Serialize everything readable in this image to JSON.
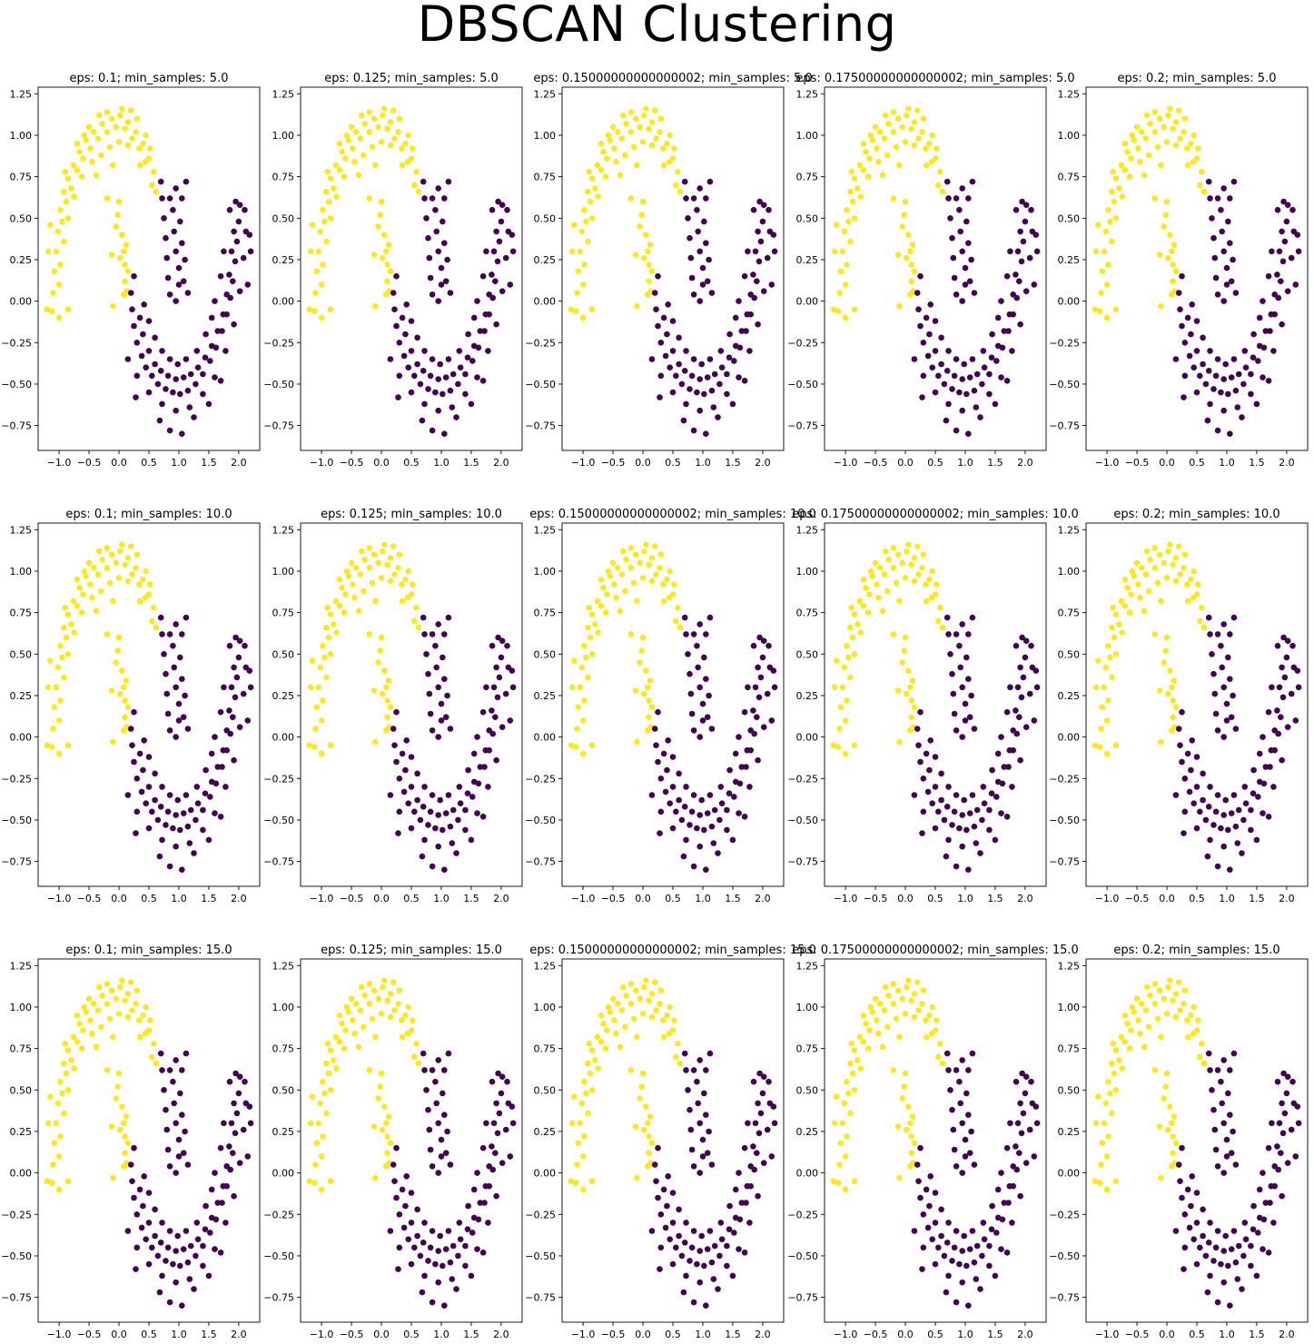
{
  "suptitle": "DBSCAN Clustering",
  "colors": {
    "cluster0": "#440154",
    "cluster1": "#fde725",
    "axis": "#000000"
  },
  "chart_data": {
    "type": "scatter",
    "grid": false,
    "rows": 3,
    "cols": 5,
    "xlim": [
      -1.35,
      2.35
    ],
    "ylim": [
      -0.9,
      1.29
    ],
    "xticks": [
      -1.0,
      -0.5,
      0.0,
      0.5,
      1.0,
      1.5,
      2.0
    ],
    "xtick_labels": [
      "−1.0",
      "−0.5",
      "0.0",
      "0.5",
      "1.0",
      "1.5",
      "2.0"
    ],
    "yticks": [
      1.25,
      1.0,
      0.75,
      0.5,
      0.25,
      0.0,
      -0.25,
      -0.5,
      -0.75
    ],
    "ytick_labels": [
      "1.25",
      "1.00",
      "0.75",
      "0.50",
      "0.25",
      "0.00",
      "−0.25",
      "−0.50",
      "−0.75"
    ],
    "subplots": [
      {
        "title": "eps: 0.1; min_samples: 5.0"
      },
      {
        "title": "eps: 0.125; min_samples: 5.0"
      },
      {
        "title": "eps: 0.15000000000000002; min_samples: 5.0"
      },
      {
        "title": "eps: 0.17500000000000002; min_samples: 5.0"
      },
      {
        "title": "eps: 0.2; min_samples: 5.0"
      },
      {
        "title": "eps: 0.1; min_samples: 10.0"
      },
      {
        "title": "eps: 0.125; min_samples: 10.0"
      },
      {
        "title": "eps: 0.15000000000000002; min_samples: 10.0"
      },
      {
        "title": "eps: 0.17500000000000002; min_samples: 10.0"
      },
      {
        "title": "eps: 0.2; min_samples: 10.0"
      },
      {
        "title": "eps: 0.1; min_samples: 15.0"
      },
      {
        "title": "eps: 0.125; min_samples: 15.0"
      },
      {
        "title": "eps: 0.15000000000000002; min_samples: 15.0"
      },
      {
        "title": "eps: 0.17500000000000002; min_samples: 15.0"
      },
      {
        "title": "eps: 0.2; min_samples: 15.0"
      }
    ],
    "points": [
      [
        -1.02,
        0.42,
        1
      ],
      [
        -0.98,
        0.55,
        1
      ],
      [
        -0.92,
        0.66,
        1
      ],
      [
        -0.85,
        0.74,
        1
      ],
      [
        -0.76,
        0.82,
        1
      ],
      [
        -0.66,
        0.9,
        1
      ],
      [
        -0.55,
        0.97,
        1
      ],
      [
        -0.42,
        1.02,
        1
      ],
      [
        -0.28,
        1.07,
        1
      ],
      [
        -0.12,
        1.1,
        1
      ],
      [
        0.02,
        1.12,
        1
      ],
      [
        0.15,
        1.08,
        1
      ],
      [
        0.28,
        1.02,
        1
      ],
      [
        0.4,
        0.95,
        1
      ],
      [
        0.5,
        0.86,
        1
      ],
      [
        0.58,
        0.78,
        1
      ],
      [
        -1.05,
        0.3,
        1
      ],
      [
        -1.08,
        0.18,
        1
      ],
      [
        -1.1,
        0.05,
        1
      ],
      [
        -1.12,
        -0.06,
        1
      ],
      [
        -0.95,
        0.48,
        1
      ],
      [
        -0.88,
        0.6,
        1
      ],
      [
        -0.8,
        0.68,
        1
      ],
      [
        -0.7,
        0.79,
        1
      ],
      [
        -0.6,
        0.86,
        1
      ],
      [
        -0.48,
        0.92,
        1
      ],
      [
        -0.35,
        0.98,
        1
      ],
      [
        -0.2,
        1.02,
        1
      ],
      [
        -0.05,
        1.05,
        1
      ],
      [
        0.1,
        1.04,
        1
      ],
      [
        0.22,
        0.98,
        1
      ],
      [
        0.34,
        0.92,
        1
      ],
      [
        0.44,
        0.84,
        1
      ],
      [
        -0.3,
        0.88,
        1
      ],
      [
        -0.15,
        0.93,
        1
      ],
      [
        0.0,
        0.96,
        1
      ],
      [
        0.15,
        0.94,
        1
      ],
      [
        -0.45,
        0.84,
        1
      ],
      [
        -0.62,
        0.75,
        1
      ],
      [
        -0.75,
        0.63,
        1
      ],
      [
        -0.85,
        0.5,
        1
      ],
      [
        -0.92,
        0.36,
        1
      ],
      [
        -0.98,
        0.22,
        1
      ],
      [
        -1.0,
        0.1,
        1
      ],
      [
        0.05,
        1.16,
        1
      ],
      [
        -0.2,
        1.14,
        1
      ],
      [
        0.3,
        1.1,
        1
      ],
      [
        -0.5,
        1.05,
        1
      ],
      [
        -0.9,
        0.78,
        1
      ],
      [
        -1.18,
        0.3,
        1
      ],
      [
        -1.15,
        0.46,
        1
      ],
      [
        0.35,
        0.82,
        1
      ],
      [
        0.55,
        0.7,
        1
      ],
      [
        0.62,
        0.66,
        1
      ],
      [
        -0.1,
        0.82,
        1
      ],
      [
        -0.38,
        0.76,
        1
      ],
      [
        -0.02,
        0.52,
        1
      ],
      [
        0.05,
        0.4,
        1
      ],
      [
        0.08,
        0.3,
        1
      ],
      [
        0.1,
        0.22,
        1
      ],
      [
        0.1,
        0.12,
        1
      ],
      [
        0.08,
        0.04,
        1
      ],
      [
        0.0,
        0.6,
        1
      ],
      [
        -0.05,
        0.45,
        1
      ],
      [
        0.02,
        0.26,
        1
      ],
      [
        -0.12,
        0.28,
        1
      ],
      [
        0.15,
        0.18,
        1
      ],
      [
        0.13,
        0.06,
        1
      ],
      [
        -0.2,
        0.62,
        1
      ],
      [
        0.12,
        0.34,
        1
      ],
      [
        -1.2,
        -0.05,
        1
      ],
      [
        -1.0,
        -0.1,
        1
      ],
      [
        -0.85,
        -0.05,
        1
      ],
      [
        -0.1,
        -0.03,
        1
      ],
      [
        0.45,
        1.0,
        1
      ],
      [
        0.52,
        0.92,
        1
      ],
      [
        -0.7,
        0.95,
        1
      ],
      [
        -0.58,
        1.0,
        1
      ],
      [
        0.2,
        1.15,
        1
      ],
      [
        -0.33,
        1.12,
        1
      ],
      [
        0.72,
        0.62,
        0
      ],
      [
        0.75,
        0.5,
        0
      ],
      [
        0.78,
        0.38,
        0
      ],
      [
        0.8,
        0.26,
        0
      ],
      [
        0.82,
        0.14,
        0
      ],
      [
        0.85,
        0.04,
        0
      ],
      [
        0.7,
        0.72,
        0
      ],
      [
        0.95,
        0.68,
        0
      ],
      [
        0.9,
        0.55,
        0
      ],
      [
        0.92,
        0.42,
        0
      ],
      [
        0.95,
        0.3,
        0
      ],
      [
        1.0,
        0.2,
        0
      ],
      [
        1.05,
        0.62,
        0
      ],
      [
        1.02,
        0.48,
        0
      ],
      [
        1.05,
        0.35,
        0
      ],
      [
        1.1,
        0.25,
        0
      ],
      [
        0.25,
        0.15,
        0
      ],
      [
        0.2,
        0.05,
        0
      ],
      [
        0.22,
        -0.05,
        0
      ],
      [
        0.25,
        -0.15,
        0
      ],
      [
        0.3,
        -0.25,
        0
      ],
      [
        0.38,
        -0.33,
        0
      ],
      [
        0.45,
        -0.4,
        0
      ],
      [
        0.55,
        -0.45,
        0
      ],
      [
        0.65,
        -0.5,
        0
      ],
      [
        0.78,
        -0.53,
        0
      ],
      [
        0.9,
        -0.55,
        0
      ],
      [
        1.02,
        -0.56,
        0
      ],
      [
        1.15,
        -0.54,
        0
      ],
      [
        1.28,
        -0.5,
        0
      ],
      [
        1.4,
        -0.44,
        0
      ],
      [
        1.52,
        -0.36,
        0
      ],
      [
        1.62,
        -0.28,
        0
      ],
      [
        1.72,
        -0.18,
        0
      ],
      [
        1.8,
        -0.08,
        0
      ],
      [
        1.86,
        0.02,
        0
      ],
      [
        1.9,
        0.12,
        0
      ],
      [
        1.94,
        0.24,
        0
      ],
      [
        1.97,
        0.36,
        0
      ],
      [
        2.0,
        0.48,
        0
      ],
      [
        2.02,
        0.58,
        0
      ],
      [
        0.35,
        -0.1,
        0
      ],
      [
        0.4,
        -0.2,
        0
      ],
      [
        0.5,
        -0.3,
        0
      ],
      [
        0.6,
        -0.38,
        0
      ],
      [
        0.7,
        -0.42,
        0
      ],
      [
        0.82,
        -0.45,
        0
      ],
      [
        0.95,
        -0.47,
        0
      ],
      [
        1.08,
        -0.46,
        0
      ],
      [
        1.2,
        -0.44,
        0
      ],
      [
        1.32,
        -0.4,
        0
      ],
      [
        1.44,
        -0.34,
        0
      ],
      [
        1.55,
        -0.27,
        0
      ],
      [
        1.65,
        -0.18,
        0
      ],
      [
        1.74,
        -0.08,
        0
      ],
      [
        1.8,
        0.04,
        0
      ],
      [
        1.84,
        0.16,
        0
      ],
      [
        1.88,
        0.3,
        0
      ],
      [
        1.92,
        0.42,
        0
      ],
      [
        0.3,
        -0.45,
        0
      ],
      [
        0.5,
        -0.55,
        0
      ],
      [
        0.72,
        -0.62,
        0
      ],
      [
        0.95,
        -0.66,
        0
      ],
      [
        1.18,
        -0.64,
        0
      ],
      [
        1.4,
        -0.56,
        0
      ],
      [
        1.6,
        -0.46,
        0
      ],
      [
        1.78,
        -0.3,
        0
      ],
      [
        1.92,
        -0.14,
        0
      ],
      [
        2.02,
        0.06,
        0
      ],
      [
        2.08,
        0.26,
        0
      ],
      [
        2.12,
        0.42,
        0
      ],
      [
        0.15,
        -0.35,
        0
      ],
      [
        0.28,
        -0.58,
        0
      ],
      [
        0.85,
        -0.78,
        0
      ],
      [
        1.05,
        -0.8,
        0
      ],
      [
        1.25,
        -0.7,
        0
      ],
      [
        0.68,
        -0.72,
        0
      ],
      [
        1.5,
        -0.62,
        0
      ],
      [
        1.7,
        -0.48,
        0
      ],
      [
        2.15,
        0.1,
        0
      ],
      [
        2.2,
        0.3,
        0
      ],
      [
        1.75,
        0.3,
        0
      ],
      [
        1.7,
        0.15,
        0
      ],
      [
        1.6,
        0.0,
        0
      ],
      [
        1.55,
        -0.1,
        0
      ],
      [
        1.45,
        -0.2,
        0
      ],
      [
        1.3,
        -0.3,
        0
      ],
      [
        1.12,
        -0.35,
        0
      ],
      [
        0.98,
        -0.38,
        0
      ],
      [
        0.85,
        -0.35,
        0
      ],
      [
        0.72,
        -0.3,
        0
      ],
      [
        0.6,
        -0.22,
        0
      ],
      [
        0.5,
        -0.12,
        0
      ],
      [
        0.42,
        -0.02,
        0
      ],
      [
        1.0,
        0.1,
        0
      ],
      [
        0.95,
        0.0,
        0
      ],
      [
        1.15,
        0.05,
        0
      ],
      [
        1.12,
        0.72,
        0
      ],
      [
        0.85,
        0.62,
        0
      ],
      [
        1.08,
        0.12,
        0
      ],
      [
        1.85,
        0.55,
        0
      ],
      [
        1.95,
        0.6,
        0
      ],
      [
        2.1,
        0.55,
        0
      ],
      [
        2.18,
        0.4,
        0
      ]
    ]
  }
}
